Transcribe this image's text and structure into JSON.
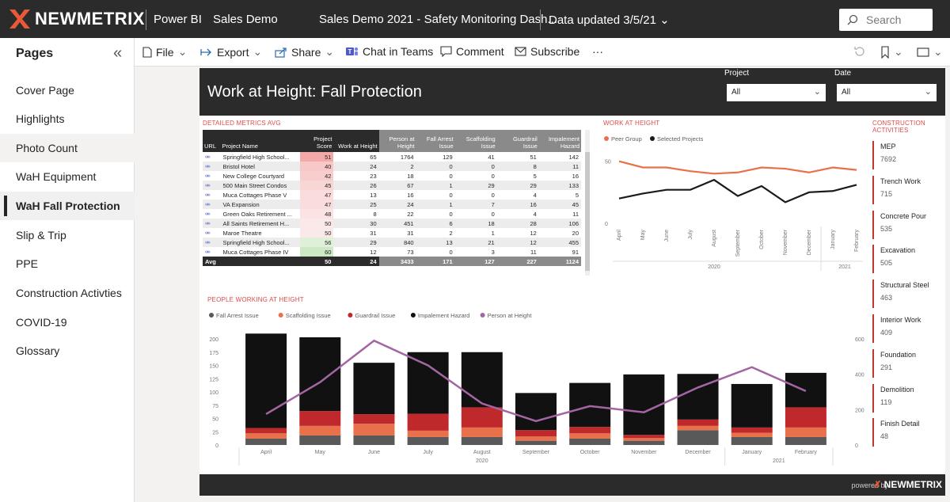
{
  "topbar": {
    "brand": "NEWMETRIX",
    "app": "Power BI",
    "workspace": "Sales Demo",
    "report_name": "Sales Demo 2021 - Safety Monitoring Dash...",
    "data_updated": "Data updated 3/5/21",
    "search_placeholder": "Search"
  },
  "sidebar": {
    "title": "Pages",
    "items": [
      {
        "label": "Cover Page"
      },
      {
        "label": "Highlights"
      },
      {
        "label": "Photo Count"
      },
      {
        "label": "WaH Equipment"
      },
      {
        "label": "WaH Fall Protection"
      },
      {
        "label": "Slip & Trip"
      },
      {
        "label": "PPE"
      },
      {
        "label": "Construction Activties"
      },
      {
        "label": "COVID-19"
      },
      {
        "label": "Glossary"
      }
    ]
  },
  "actionbar": {
    "file": "File",
    "export": "Export",
    "share": "Share",
    "teams": "Chat in Teams",
    "comment": "Comment",
    "subscribe": "Subscribe",
    "more": "···"
  },
  "report": {
    "title": "Work at Height: Fall Protection",
    "slicer_project_label": "Project",
    "slicer_project_value": "All",
    "slicer_date_label": "Date",
    "slicer_date_value": "All",
    "detailed_title": "DETAILED METRICS AVG",
    "wah_title": "WORK AT HEIGHT",
    "activities_title_1": "CONSTRUCTION",
    "activities_title_2": "ACTIVITIES",
    "people_title": "PEOPLE WORKING AT HEIGHT",
    "powered_by": "powered by",
    "footer_brand": "NEWMETRIX"
  },
  "table": {
    "headers": [
      "URL",
      "Project Name",
      "Project Score",
      "Work at Height",
      "Person at Height",
      "Fall Arrest Issue",
      "Scaffolding Issue",
      "Guardrail Issue",
      "Impalement Hazard"
    ],
    "rows": [
      [
        "Springfield High School...",
        "51",
        "65",
        "1764",
        "129",
        "41",
        "51",
        "142"
      ],
      [
        "Bristol Hotel",
        "40",
        "24",
        "2",
        "0",
        "0",
        "8",
        "11"
      ],
      [
        "New College Courtyard",
        "42",
        "23",
        "18",
        "0",
        "0",
        "5",
        "16"
      ],
      [
        "500 Main Street Condos",
        "45",
        "26",
        "67",
        "1",
        "29",
        "29",
        "133"
      ],
      [
        "Muca Cottages Phase V",
        "47",
        "13",
        "16",
        "0",
        "0",
        "4",
        "5"
      ],
      [
        "VA Expansion",
        "47",
        "25",
        "24",
        "1",
        "7",
        "16",
        "45"
      ],
      [
        "Green Oaks Retirement ...",
        "48",
        "8",
        "22",
        "0",
        "0",
        "4",
        "11"
      ],
      [
        "All Saints Retirement H...",
        "50",
        "30",
        "451",
        "6",
        "18",
        "28",
        "106"
      ],
      [
        "Maroe Theatre",
        "50",
        "31",
        "31",
        "2",
        "1",
        "12",
        "20"
      ],
      [
        "Springfield High School...",
        "56",
        "29",
        "840",
        "13",
        "21",
        "12",
        "455"
      ],
      [
        "Muca Cottages Phase IV",
        "60",
        "12",
        "73",
        "0",
        "3",
        "11",
        "91"
      ]
    ],
    "avg": [
      "Avg",
      "50",
      "24",
      "3433",
      "171",
      "127",
      "227",
      "1124"
    ],
    "score_colors": [
      "#f4a9a9",
      "#f8c7c7",
      "#f8cdcd",
      "#f9d6d6",
      "#fadcdc",
      "#fadcdc",
      "#fbe3e3",
      "#fbe8e8",
      "#fbe8e8",
      "#dff0d8",
      "#cce8c4"
    ]
  },
  "activities": [
    {
      "name": "MEP",
      "value": "7692"
    },
    {
      "name": "Trench Work",
      "value": "715"
    },
    {
      "name": "Concrete Pour",
      "value": "535"
    },
    {
      "name": "Excavation",
      "value": "505"
    },
    {
      "name": "Structural Steel",
      "value": "463"
    },
    {
      "name": "Interior Work",
      "value": "409"
    },
    {
      "name": "Foundation",
      "value": "291"
    },
    {
      "name": "Demolition",
      "value": "119"
    },
    {
      "name": "Finish Detail",
      "value": "48"
    }
  ],
  "chart_data": [
    {
      "type": "line",
      "title": "WORK AT HEIGHT",
      "categories": [
        "April",
        "May",
        "June",
        "July",
        "August",
        "September",
        "October",
        "November",
        "December",
        "January",
        "February"
      ],
      "year_labels": [
        "2020",
        "2021"
      ],
      "ylim": [
        0,
        60
      ],
      "yticks": [
        0,
        50
      ],
      "legend_position": "top-left",
      "series": [
        {
          "name": "Peer Group",
          "color": "#e8704a",
          "values": [
            50,
            45,
            45,
            42,
            40,
            41,
            45,
            44,
            41,
            45,
            43
          ]
        },
        {
          "name": "Selected Projects",
          "color": "#1a1a1a",
          "values": [
            20,
            24,
            27,
            27,
            35,
            22,
            30,
            17,
            25,
            26,
            31
          ]
        }
      ]
    },
    {
      "type": "bar",
      "title": "PEOPLE WORKING AT HEIGHT",
      "categories": [
        "April",
        "May",
        "June",
        "July",
        "August",
        "September",
        "October",
        "November",
        "December",
        "January",
        "February"
      ],
      "year_labels": [
        "2020",
        "2021"
      ],
      "ylim": [
        0,
        200
      ],
      "y2lim": [
        0,
        600
      ],
      "yticks": [
        0,
        25,
        50,
        75,
        100,
        125,
        150,
        175,
        200
      ],
      "y2ticks": [
        0,
        200,
        400,
        600
      ],
      "stacked": true,
      "legend_position": "top-left",
      "series": [
        {
          "name": "Fall Arrest Issue",
          "color": "#595959",
          "values": [
            12,
            18,
            18,
            15,
            15,
            8,
            12,
            8,
            28,
            15,
            15
          ]
        },
        {
          "name": "Scaffolding Issue",
          "color": "#e8704a",
          "values": [
            10,
            18,
            22,
            12,
            18,
            8,
            10,
            5,
            8,
            8,
            18
          ]
        },
        {
          "name": "Guardrail Issue",
          "color": "#c0292b",
          "values": [
            10,
            28,
            18,
            32,
            38,
            12,
            12,
            6,
            12,
            10,
            38
          ]
        },
        {
          "name": "Impalement Hazard",
          "color": "#111111",
          "values": [
            178,
            139,
            97,
            116,
            104,
            70,
            83,
            114,
            86,
            82,
            65
          ]
        },
        {
          "name": "Person at Height",
          "color": "#a366a3",
          "axis": "y2",
          "values": [
            175,
            355,
            590,
            450,
            235,
            135,
            220,
            185,
            325,
            440,
            305
          ]
        }
      ]
    }
  ]
}
